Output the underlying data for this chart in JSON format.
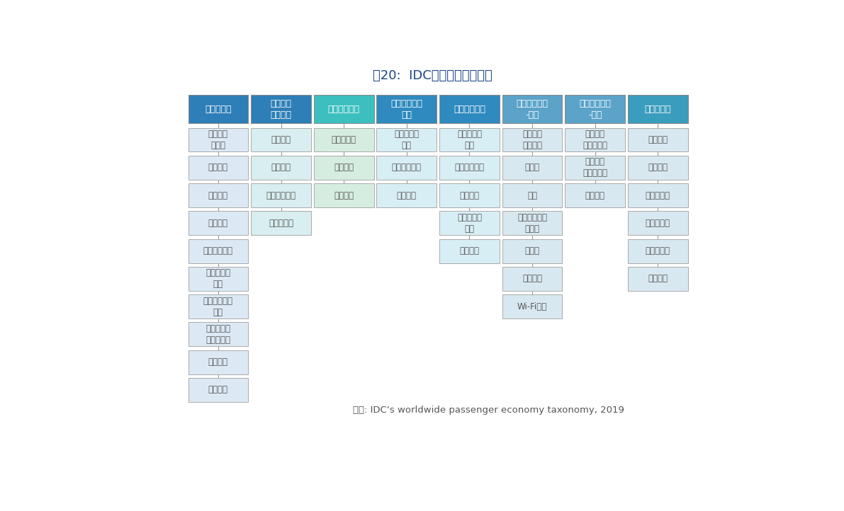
{
  "title": "图20:  IDC乘客经济市场分类",
  "title_color": "#1a4480",
  "title_fontsize": 13,
  "source_text": "来源: IDCʼs worldwide passenger economy taxonomy, 2019",
  "header_bg_colors": [
    "#2e7fb8",
    "#2e7fb8",
    "#3dbfbf",
    "#2e8abf",
    "#2e8abf",
    "#5ba3c9",
    "#5ba3c9",
    "#3b9dbd"
  ],
  "header_text_color": "#ffffff",
  "cell_bg_colors": [
    "#dce9f5",
    "#d8eef0",
    "#d5ede0",
    "#d8eef5",
    "#d8eef5",
    "#d8e8f0",
    "#d8e8f0",
    "#d8e8f0"
  ],
  "cell_text_color": "#555555",
  "connector_color": "#999999",
  "columns": [
    {
      "header": "数据即服务",
      "items": [
        "司机收费\n及税务",
        "车队管理",
        "位置信息",
        "泊车服务",
        "远程汽车服务",
        "道路及紧急\n救援",
        "远程信息处理\n服务",
        "基于使用量\n的汽车保险",
        "保修服务",
        "车辆状态"
      ]
    },
    {
      "header": "数字交通\n基础设施",
      "items": [
        "专属通道",
        "智能停车",
        "智能交通管理",
        "收费和税收"
      ]
    },
    {
      "header": "数字汽车商务",
      "items": [
        "交付和访问",
        "数码市场",
        "车载采购"
      ]
    },
    {
      "header": "数字汽车消费\n服务",
      "items": [
        "地图和位置\n服务",
        "共享汽车保险",
        "智能助理"
      ]
    },
    {
      "header": "数字汽车运营",
      "items": [
        "身份验证和\n支付",
        "自主汽车保险",
        "车队学习",
        "地图和位置\n服务",
        "软件更新"
      ]
    },
    {
      "header": "资讯娱乐系统\n-娱乐",
      "items": [
        "增强现实\n虚拟现实",
        "内容流",
        "游戏",
        "移动应用程序\n和商店",
        "个性化",
        "智能助理",
        "Wi-Fi热点"
      ]
    },
    {
      "header": "资讯娱乐系统\n-咨询",
      "items": [
        "实时交通\n和道路信息",
        "移动应用\n程序和商店",
        "智能助理"
      ]
    },
    {
      "header": "出行即服务",
      "items": [
        "先进公交",
        "空中巴士",
        "微移动服务",
        "模块化运输",
        "叫车和共享",
        "共享汽车"
      ]
    }
  ]
}
